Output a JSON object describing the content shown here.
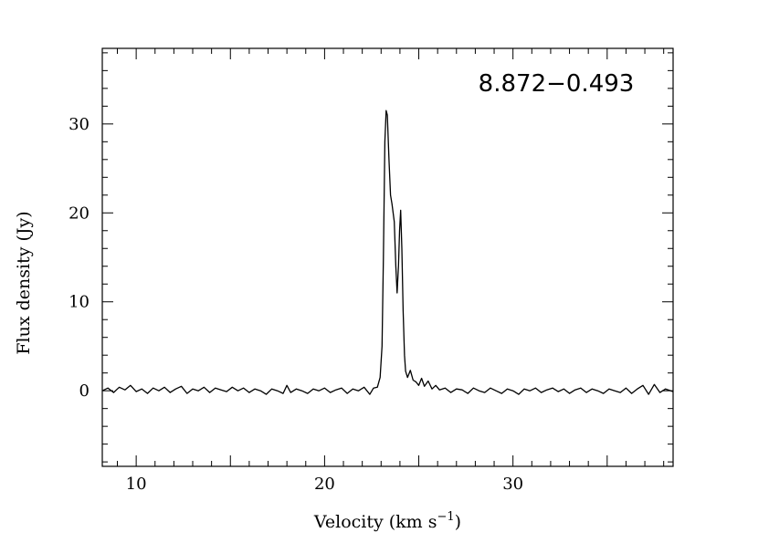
{
  "chart_data": {
    "type": "line",
    "title": "8.872−0.493",
    "xlabel": "Velocity (km s",
    "xlabel_unit_exponent": "−1",
    "xlabel_suffix": ")",
    "ylabel": "Flux density (Jy)",
    "xlim": [
      8.2,
      38.5
    ],
    "ylim": [
      -8.5,
      38.5
    ],
    "x_ticks": [
      10,
      20,
      30
    ],
    "y_ticks": [
      0,
      10,
      20,
      30
    ],
    "grid": false,
    "series": [
      {
        "values": [
          [
            8.2,
            0.0
          ],
          [
            8.5,
            0.3
          ],
          [
            8.8,
            -0.2
          ],
          [
            9.1,
            0.4
          ],
          [
            9.4,
            0.1
          ],
          [
            9.7,
            0.6
          ],
          [
            10.0,
            -0.1
          ],
          [
            10.3,
            0.2
          ],
          [
            10.6,
            -0.3
          ],
          [
            10.9,
            0.3
          ],
          [
            11.2,
            0.0
          ],
          [
            11.5,
            0.4
          ],
          [
            11.8,
            -0.2
          ],
          [
            12.1,
            0.2
          ],
          [
            12.4,
            0.5
          ],
          [
            12.7,
            -0.3
          ],
          [
            13.0,
            0.2
          ],
          [
            13.3,
            0.0
          ],
          [
            13.6,
            0.4
          ],
          [
            13.9,
            -0.2
          ],
          [
            14.2,
            0.3
          ],
          [
            14.5,
            0.1
          ],
          [
            14.8,
            -0.1
          ],
          [
            15.1,
            0.4
          ],
          [
            15.4,
            0.0
          ],
          [
            15.7,
            0.3
          ],
          [
            16.0,
            -0.2
          ],
          [
            16.3,
            0.2
          ],
          [
            16.6,
            0.0
          ],
          [
            16.9,
            -0.4
          ],
          [
            17.2,
            0.2
          ],
          [
            17.5,
            0.0
          ],
          [
            17.8,
            -0.3
          ],
          [
            18.0,
            0.6
          ],
          [
            18.2,
            -0.2
          ],
          [
            18.5,
            0.2
          ],
          [
            18.8,
            0.0
          ],
          [
            19.1,
            -0.3
          ],
          [
            19.4,
            0.2
          ],
          [
            19.7,
            0.0
          ],
          [
            20.0,
            0.3
          ],
          [
            20.3,
            -0.2
          ],
          [
            20.6,
            0.1
          ],
          [
            20.9,
            0.3
          ],
          [
            21.2,
            -0.3
          ],
          [
            21.5,
            0.2
          ],
          [
            21.8,
            0.0
          ],
          [
            22.1,
            0.4
          ],
          [
            22.4,
            -0.4
          ],
          [
            22.6,
            0.3
          ],
          [
            22.8,
            0.4
          ],
          [
            22.95,
            1.5
          ],
          [
            23.05,
            5.0
          ],
          [
            23.12,
            15.0
          ],
          [
            23.2,
            28.0
          ],
          [
            23.27,
            31.5
          ],
          [
            23.33,
            31.0
          ],
          [
            23.42,
            26.0
          ],
          [
            23.5,
            22.0
          ],
          [
            23.58,
            21.0
          ],
          [
            23.7,
            19.0
          ],
          [
            23.78,
            14.0
          ],
          [
            23.85,
            11.0
          ],
          [
            23.92,
            14.0
          ],
          [
            23.98,
            18.0
          ],
          [
            24.04,
            20.3
          ],
          [
            24.1,
            16.0
          ],
          [
            24.17,
            9.0
          ],
          [
            24.24,
            4.0
          ],
          [
            24.3,
            2.2
          ],
          [
            24.4,
            1.5
          ],
          [
            24.55,
            2.3
          ],
          [
            24.7,
            1.2
          ],
          [
            24.85,
            1.0
          ],
          [
            25.0,
            0.6
          ],
          [
            25.15,
            1.4
          ],
          [
            25.3,
            0.5
          ],
          [
            25.5,
            1.1
          ],
          [
            25.7,
            0.2
          ],
          [
            25.9,
            0.6
          ],
          [
            26.1,
            0.1
          ],
          [
            26.4,
            0.3
          ],
          [
            26.7,
            -0.2
          ],
          [
            27.0,
            0.2
          ],
          [
            27.3,
            0.1
          ],
          [
            27.6,
            -0.3
          ],
          [
            27.9,
            0.3
          ],
          [
            28.2,
            0.0
          ],
          [
            28.5,
            -0.2
          ],
          [
            28.8,
            0.3
          ],
          [
            29.1,
            0.0
          ],
          [
            29.4,
            -0.3
          ],
          [
            29.7,
            0.2
          ],
          [
            30.0,
            0.0
          ],
          [
            30.3,
            -0.4
          ],
          [
            30.6,
            0.2
          ],
          [
            30.9,
            0.0
          ],
          [
            31.2,
            0.3
          ],
          [
            31.5,
            -0.2
          ],
          [
            31.8,
            0.1
          ],
          [
            32.1,
            0.3
          ],
          [
            32.4,
            -0.1
          ],
          [
            32.7,
            0.2
          ],
          [
            33.0,
            -0.3
          ],
          [
            33.3,
            0.1
          ],
          [
            33.6,
            0.3
          ],
          [
            33.9,
            -0.2
          ],
          [
            34.2,
            0.2
          ],
          [
            34.5,
            0.0
          ],
          [
            34.8,
            -0.3
          ],
          [
            35.1,
            0.2
          ],
          [
            35.4,
            0.0
          ],
          [
            35.7,
            -0.2
          ],
          [
            36.0,
            0.3
          ],
          [
            36.3,
            -0.3
          ],
          [
            36.6,
            0.2
          ],
          [
            36.9,
            0.6
          ],
          [
            37.2,
            -0.4
          ],
          [
            37.5,
            0.7
          ],
          [
            37.8,
            -0.2
          ],
          [
            38.1,
            0.2
          ],
          [
            38.5,
            -0.1
          ]
        ]
      }
    ]
  }
}
